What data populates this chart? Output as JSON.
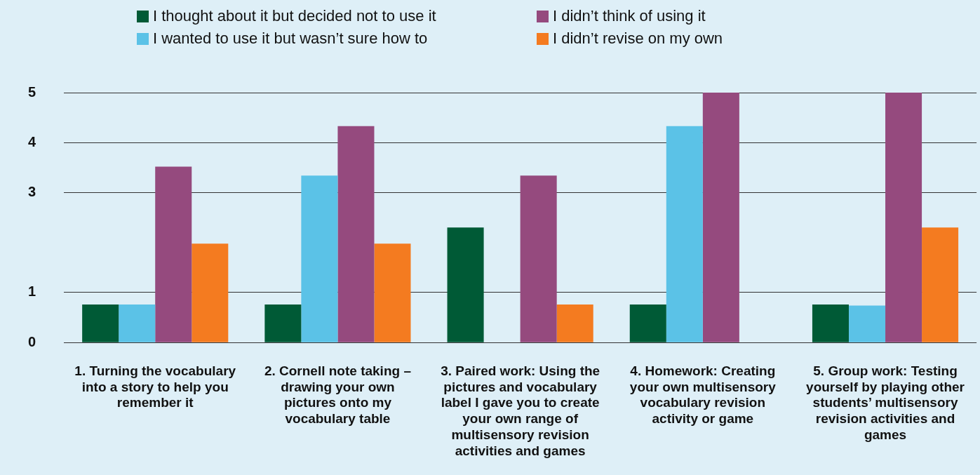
{
  "chart_data": {
    "type": "bar",
    "categories": [
      "1. Turning the vocabulary into a story to help you remember it",
      "2. Cornell note taking – drawing your own pictures onto my vocabulary table",
      "3. Paired work: Using the pictures and vocabulary label I gave you to create your own range of multisensory revision activities and games",
      "4. Homework: Creating your own multisensory vocabulary revision activity or game",
      "5. Group work: Testing yourself by playing other students’ multisensory revision activities and games"
    ],
    "series": [
      {
        "name": "I thought about it but decided not to use it",
        "color": "#005a36",
        "values": [
          0.76,
          0.76,
          2.3,
          0.76,
          0.76
        ]
      },
      {
        "name": "I wanted to use it but wasn’t sure how to",
        "color": "#5bc2e7",
        "values": [
          0.76,
          3.34,
          null,
          4.33,
          0.74
        ]
      },
      {
        "name": "I didn’t think of using it",
        "color": "#954a7e",
        "values": [
          3.52,
          4.33,
          3.34,
          5,
          5
        ]
      },
      {
        "name": "I didn’t revise on my own",
        "color": "#f47b20",
        "values": [
          1.98,
          1.98,
          0.76,
          null,
          2.3
        ]
      }
    ],
    "ylim": [
      0,
      5
    ],
    "yticks": [
      0,
      1,
      3,
      4,
      5
    ],
    "grid": "y",
    "legend": "top"
  }
}
